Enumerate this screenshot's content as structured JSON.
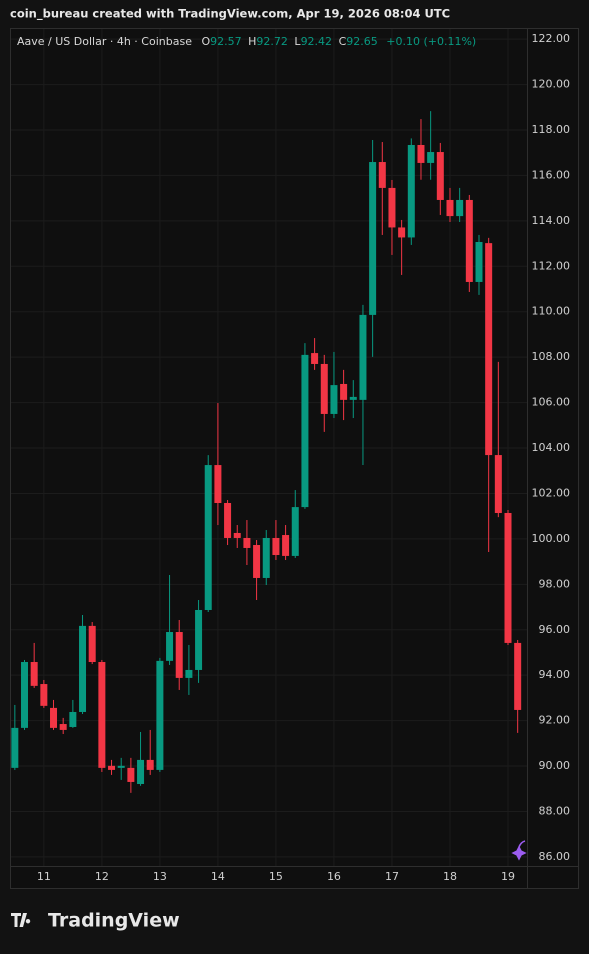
{
  "header": "coin_bureau created with TradingView.com, Apr 19, 2026 08:04 UTC",
  "footer": "TradingView",
  "chart_data": {
    "type": "candlestick",
    "title": "Aave / US Dollar · 4h · Coinbase",
    "ohlc_legend": {
      "open_label": "O",
      "open": "92.57",
      "high_label": "H",
      "high": "92.72",
      "low_label": "L",
      "low": "92.42",
      "close_label": "C",
      "close": "92.65",
      "change": "+0.10 (+0.11%)"
    },
    "up_color": "#089981",
    "down_color": "#f23645",
    "grid": true,
    "categories": [
      null,
      null,
      null,
      "11",
      null,
      null,
      null,
      null,
      null,
      "12",
      null,
      null,
      null,
      null,
      null,
      "13",
      null,
      null,
      null,
      null,
      null,
      "14",
      null,
      null,
      null,
      null,
      null,
      "15",
      null,
      null,
      null,
      null,
      null,
      "16",
      null,
      null,
      null,
      null,
      null,
      "17",
      null,
      null,
      null,
      null,
      null,
      "18",
      null,
      null,
      null,
      null,
      null,
      "19",
      null
    ],
    "open": [
      89.92,
      91.68,
      94.58,
      93.61,
      92.56,
      91.85,
      91.72,
      92.38,
      96.17,
      94.58,
      90.01,
      89.92,
      89.92,
      89.21,
      90.27,
      89.83,
      94.63,
      95.9,
      93.88,
      94.23,
      96.87,
      103.25,
      101.58,
      100.26,
      100.04,
      99.73,
      98.28,
      100.04,
      100.17,
      99.25,
      101.4,
      108.18,
      107.7,
      105.5,
      106.82,
      106.12,
      106.12,
      109.86,
      116.59,
      115.45,
      113.71,
      113.27,
      117.34,
      116.55,
      117.03,
      114.92,
      114.21,
      114.92,
      111.31,
      113.02,
      103.69,
      101.14,
      95.42
    ],
    "high": [
      92.69,
      94.67,
      95.42,
      93.79,
      92.91,
      92.12,
      92.91,
      96.65,
      96.34,
      94.67,
      90.27,
      90.36,
      90.36,
      91.5,
      91.59,
      94.76,
      98.41,
      96.43,
      95.33,
      97.31,
      103.69,
      105.98,
      101.71,
      100.61,
      100.83,
      99.95,
      100.39,
      100.83,
      100.61,
      102.15,
      108.62,
      108.84,
      108.1,
      108.23,
      107.44,
      106.99,
      110.3,
      117.56,
      117.47,
      115.8,
      114.04,
      117.63,
      118.48,
      118.83,
      117.43,
      115.45,
      115.45,
      115.14,
      113.38,
      113.25,
      107.79,
      101.27,
      95.55
    ],
    "low": [
      89.83,
      91.59,
      93.44,
      92.56,
      91.59,
      91.41,
      91.68,
      92.29,
      94.49,
      89.74,
      89.61,
      89.39,
      88.82,
      89.13,
      89.61,
      89.74,
      94.45,
      93.35,
      93.13,
      93.66,
      96.78,
      100.61,
      99.73,
      99.6,
      98.85,
      97.31,
      97.97,
      99.07,
      99.07,
      99.16,
      101.32,
      107.44,
      104.71,
      105.32,
      105.23,
      105.32,
      103.25,
      108.01,
      113.38,
      112.5,
      111.62,
      112.94,
      115.81,
      115.81,
      114.26,
      113.95,
      113.95,
      110.87,
      110.74,
      99.42,
      100.96,
      95.33,
      91.46
    ],
    "close": [
      91.68,
      94.58,
      93.53,
      92.65,
      91.68,
      91.59,
      92.38,
      96.17,
      94.58,
      89.92,
      89.83,
      90.01,
      89.3,
      90.27,
      89.83,
      94.63,
      95.9,
      93.88,
      94.23,
      96.87,
      103.25,
      101.58,
      100.04,
      100.04,
      99.6,
      98.28,
      100.04,
      99.29,
      99.25,
      101.4,
      108.1,
      107.7,
      105.5,
      106.77,
      106.12,
      106.25,
      109.86,
      116.59,
      115.45,
      113.71,
      113.27,
      117.34,
      116.55,
      117.03,
      114.92,
      114.21,
      114.92,
      111.31,
      113.07,
      103.69,
      101.14,
      95.42,
      92.47
    ],
    "ylim": [
      85.6,
      122.49
    ],
    "yticks": [
      {
        "value": 86,
        "label": "86.00"
      },
      {
        "value": 88,
        "label": "88.00"
      },
      {
        "value": 90,
        "label": "90.00"
      },
      {
        "value": 92,
        "label": "92.00"
      },
      {
        "value": 94,
        "label": "94.00"
      },
      {
        "value": 96,
        "label": "96.00"
      },
      {
        "value": 98,
        "label": "98.00"
      },
      {
        "value": 100,
        "label": "100.00"
      },
      {
        "value": 102,
        "label": "102.00"
      },
      {
        "value": 104,
        "label": "104.00"
      },
      {
        "value": 106,
        "label": "106.00"
      },
      {
        "value": 108,
        "label": "108.00"
      },
      {
        "value": 110,
        "label": "110.00"
      },
      {
        "value": 112,
        "label": "112.00"
      },
      {
        "value": 114,
        "label": "114.00"
      },
      {
        "value": 116,
        "label": "116.00"
      },
      {
        "value": 118,
        "label": "118.00"
      },
      {
        "value": 120,
        "label": "120.00"
      },
      {
        "value": 122,
        "label": "122.00"
      }
    ]
  }
}
